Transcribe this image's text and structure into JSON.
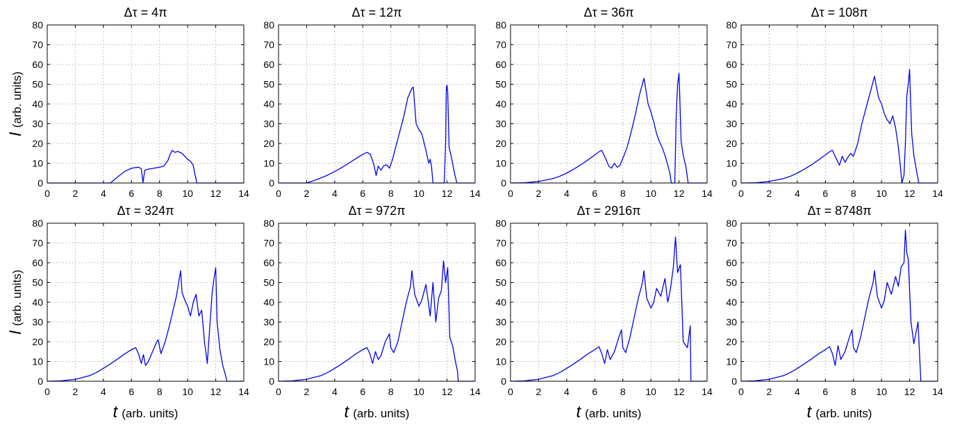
{
  "chart_data": [
    {
      "type": "line",
      "title": "Δτ = 4π",
      "ylabel": {
        "symbol": "I",
        "text": "(arb. units)"
      },
      "xlabel": {
        "symbol": "",
        "text": ""
      },
      "xlim": [
        0,
        14
      ],
      "ylim": [
        0,
        80
      ],
      "xticks": [
        0,
        2,
        4,
        6,
        8,
        10,
        12,
        14
      ],
      "yticks": [
        0,
        10,
        20,
        30,
        40,
        50,
        60,
        70,
        80
      ],
      "grid": true,
      "series": [
        {
          "color": "#0000ee",
          "x": [
            0,
            4.5,
            5.0,
            5.5,
            6.0,
            6.5,
            6.7,
            6.82,
            6.95,
            7.2,
            7.6,
            8.0,
            8.3,
            8.6,
            8.75,
            8.9,
            9.1,
            9.3,
            9.6,
            9.8,
            10.0,
            10.2,
            10.4,
            10.5,
            10.6,
            10.65,
            11.0,
            14.0
          ],
          "y": [
            0,
            0,
            3.0,
            5.8,
            7.5,
            8.0,
            7.2,
            0.2,
            6.5,
            7.0,
            7.5,
            8.0,
            8.5,
            11.5,
            14.5,
            16.5,
            15.5,
            16.0,
            15.0,
            13.5,
            12.0,
            11.0,
            9.0,
            5.0,
            2.0,
            0,
            0,
            0
          ]
        }
      ]
    },
    {
      "type": "line",
      "title": "Δτ = 12π",
      "ylabel": {
        "symbol": "",
        "text": ""
      },
      "xlabel": {
        "symbol": "",
        "text": ""
      },
      "xlim": [
        0,
        14
      ],
      "ylim": [
        0,
        80
      ],
      "xticks": [
        0,
        2,
        4,
        6,
        8,
        10,
        12,
        14
      ],
      "yticks": [
        0,
        10,
        20,
        30,
        40,
        50,
        60,
        70,
        80
      ],
      "grid": true,
      "series": [
        {
          "color": "#0000ee",
          "x": [
            0,
            2.0,
            2.5,
            3.0,
            3.5,
            4.0,
            4.5,
            5.0,
            5.5,
            6.0,
            6.3,
            6.55,
            6.8,
            6.95,
            7.1,
            7.3,
            7.5,
            7.7,
            7.9,
            8.1,
            8.3,
            8.6,
            8.9,
            9.2,
            9.5,
            9.6,
            9.8,
            10.0,
            10.2,
            10.5,
            10.7,
            10.8,
            10.9,
            11.0,
            11.5,
            11.8,
            11.9,
            11.95,
            12.0,
            12.05,
            12.15,
            12.3,
            12.5,
            12.7,
            14.0
          ],
          "y": [
            0,
            0,
            1.2,
            2.5,
            4.0,
            5.8,
            7.8,
            10.0,
            12.3,
            14.5,
            15.5,
            14.5,
            9.0,
            3.8,
            8.5,
            6.5,
            8.8,
            9.2,
            7.5,
            11.5,
            17.0,
            25.0,
            33.0,
            43.0,
            48.0,
            48.5,
            30.0,
            27.0,
            25.0,
            16.5,
            10.0,
            12.0,
            8.0,
            0,
            0,
            0,
            20.0,
            48.0,
            49.5,
            46.0,
            18.0,
            13.5,
            6.0,
            0,
            0
          ]
        }
      ]
    },
    {
      "type": "line",
      "title": "Δτ = 36π",
      "ylabel": {
        "symbol": "",
        "text": ""
      },
      "xlabel": {
        "symbol": "",
        "text": ""
      },
      "xlim": [
        0,
        14
      ],
      "ylim": [
        0,
        80
      ],
      "xticks": [
        0,
        2,
        4,
        6,
        8,
        10,
        12,
        14
      ],
      "yticks": [
        0,
        10,
        20,
        30,
        40,
        50,
        60,
        70,
        80
      ],
      "grid": true,
      "series": [
        {
          "color": "#0000ee",
          "x": [
            0,
            1.0,
            2.0,
            3.0,
            3.5,
            4.0,
            4.5,
            5.0,
            5.5,
            6.0,
            6.3,
            6.5,
            6.8,
            7.0,
            7.2,
            7.4,
            7.6,
            7.8,
            8.0,
            8.3,
            8.6,
            8.9,
            9.2,
            9.5,
            9.6,
            9.8,
            10.0,
            10.2,
            10.4,
            10.6,
            10.8,
            11.0,
            11.2,
            11.35,
            11.45,
            11.6,
            11.7,
            11.8,
            11.9,
            12.0,
            12.05,
            12.15,
            12.3,
            12.5,
            12.65,
            14.0
          ],
          "y": [
            0,
            0.1,
            0.8,
            2.2,
            3.4,
            5.0,
            7.0,
            9.2,
            11.6,
            14.2,
            15.8,
            16.5,
            12.0,
            8.5,
            7.5,
            10.0,
            8.0,
            9.0,
            12.5,
            18.0,
            26.0,
            35.0,
            45.0,
            53.0,
            49.0,
            40.0,
            36.0,
            31.0,
            25.0,
            21.0,
            18.0,
            14.0,
            9.0,
            5.0,
            0,
            0,
            0,
            34.0,
            50.0,
            55.5,
            45.0,
            21.0,
            14.0,
            8.0,
            0,
            0
          ]
        }
      ]
    },
    {
      "type": "line",
      "title": "Δτ = 108π",
      "ylabel": {
        "symbol": "",
        "text": ""
      },
      "xlabel": {
        "symbol": "",
        "text": ""
      },
      "xlim": [
        0,
        14
      ],
      "ylim": [
        0,
        80
      ],
      "xticks": [
        0,
        2,
        4,
        6,
        8,
        10,
        12,
        14
      ],
      "yticks": [
        0,
        10,
        20,
        30,
        40,
        50,
        60,
        70,
        80
      ],
      "grid": true,
      "series": [
        {
          "color": "#0000ee",
          "x": [
            0,
            1.0,
            2.0,
            3.0,
            3.5,
            4.0,
            4.5,
            5.0,
            5.5,
            6.0,
            6.3,
            6.5,
            6.8,
            7.0,
            7.2,
            7.4,
            7.6,
            7.8,
            8.0,
            8.3,
            8.6,
            8.9,
            9.2,
            9.5,
            9.6,
            9.8,
            10.0,
            10.2,
            10.4,
            10.6,
            10.8,
            11.0,
            11.2,
            11.35,
            11.45,
            11.6,
            11.7,
            11.8,
            11.9,
            12.0,
            12.05,
            12.15,
            12.3,
            12.5,
            12.65,
            14.0
          ],
          "y": [
            0,
            0.1,
            0.8,
            2.2,
            3.4,
            5.0,
            7.0,
            9.2,
            11.6,
            14.2,
            15.8,
            16.5,
            12.0,
            9.0,
            13.5,
            10.5,
            13.0,
            15.0,
            13.5,
            20.0,
            30.0,
            38.0,
            46.0,
            54.0,
            50.0,
            43.0,
            40.0,
            35.0,
            32.0,
            30.0,
            34.0,
            28.0,
            18.0,
            8.0,
            0,
            4.0,
            20.0,
            44.0,
            50.0,
            57.5,
            46.0,
            25.0,
            14.0,
            6.0,
            0,
            0
          ]
        }
      ]
    },
    {
      "type": "line",
      "title": "Δτ = 324π",
      "ylabel": {
        "symbol": "I",
        "text": "(arb. units)"
      },
      "xlabel": {
        "symbol": "t",
        "text": "(arb. units)"
      },
      "xlim": [
        0,
        14
      ],
      "ylim": [
        0,
        80
      ],
      "xticks": [
        0,
        2,
        4,
        6,
        8,
        10,
        12,
        14
      ],
      "yticks": [
        0,
        10,
        20,
        30,
        40,
        50,
        60,
        70,
        80
      ],
      "grid": true,
      "series": [
        {
          "color": "#0000ee",
          "x": [
            0,
            1.0,
            2.0,
            3.0,
            3.5,
            4.0,
            4.5,
            5.0,
            5.5,
            6.0,
            6.3,
            6.5,
            6.7,
            6.85,
            7.0,
            7.2,
            7.5,
            7.8,
            7.9,
            8.1,
            8.4,
            8.7,
            9.0,
            9.2,
            9.5,
            9.6,
            9.8,
            10.0,
            10.2,
            10.4,
            10.6,
            10.8,
            11.0,
            11.2,
            11.4,
            11.6,
            11.75,
            11.9,
            12.0,
            12.1,
            12.3,
            12.5,
            12.7,
            12.8,
            14.0
          ],
          "y": [
            0,
            0.2,
            1.0,
            2.8,
            4.4,
            6.5,
            8.8,
            11.2,
            13.8,
            16.0,
            17.0,
            14.0,
            9.0,
            13.5,
            8.0,
            10.0,
            15.0,
            20.0,
            21.0,
            14.0,
            20.0,
            28.0,
            37.0,
            43.0,
            56.0,
            45.0,
            41.0,
            38.0,
            33.0,
            40.0,
            44.0,
            33.0,
            36.0,
            20.0,
            9.0,
            30.0,
            45.0,
            53.0,
            57.5,
            30.0,
            16.0,
            8.0,
            3.0,
            0,
            0
          ]
        }
      ]
    },
    {
      "type": "line",
      "title": "Δτ = 972π",
      "ylabel": {
        "symbol": "",
        "text": ""
      },
      "xlabel": {
        "symbol": "t",
        "text": "(arb. units)"
      },
      "xlim": [
        0,
        14
      ],
      "ylim": [
        0,
        80
      ],
      "xticks": [
        0,
        2,
        4,
        6,
        8,
        10,
        12,
        14
      ],
      "yticks": [
        0,
        10,
        20,
        30,
        40,
        50,
        60,
        70,
        80
      ],
      "grid": true,
      "series": [
        {
          "color": "#0000ee",
          "x": [
            0,
            1.0,
            2.0,
            3.0,
            3.5,
            4.0,
            4.5,
            5.0,
            5.5,
            6.0,
            6.3,
            6.5,
            6.7,
            6.9,
            7.1,
            7.3,
            7.6,
            7.9,
            8.0,
            8.2,
            8.5,
            8.8,
            9.1,
            9.4,
            9.5,
            9.7,
            10.0,
            10.2,
            10.5,
            10.8,
            11.0,
            11.2,
            11.4,
            11.6,
            11.75,
            11.9,
            12.05,
            12.2,
            12.4,
            12.6,
            12.75,
            12.8,
            14.0
          ],
          "y": [
            0,
            0.2,
            1.0,
            2.8,
            4.4,
            6.5,
            8.8,
            11.2,
            13.8,
            16.0,
            17.0,
            14.0,
            9.0,
            15.0,
            11.0,
            13.0,
            20.0,
            24.0,
            17.0,
            14.5,
            20.0,
            30.0,
            40.0,
            48.0,
            56.0,
            44.0,
            38.0,
            41.0,
            49.0,
            33.0,
            50.0,
            30.0,
            42.0,
            46.0,
            61.0,
            50.0,
            57.5,
            22.0,
            18.0,
            10.0,
            5.0,
            0,
            0
          ]
        }
      ]
    },
    {
      "type": "line",
      "title": "Δτ = 2916π",
      "ylabel": {
        "symbol": "",
        "text": ""
      },
      "xlabel": {
        "symbol": "t",
        "text": "(arb. units)"
      },
      "xlim": [
        0,
        14
      ],
      "ylim": [
        0,
        80
      ],
      "xticks": [
        0,
        2,
        4,
        6,
        8,
        10,
        12,
        14
      ],
      "yticks": [
        0,
        10,
        20,
        30,
        40,
        50,
        60,
        70,
        80
      ],
      "grid": true,
      "series": [
        {
          "color": "#0000ee",
          "x": [
            0,
            1.0,
            2.0,
            3.0,
            3.5,
            4.0,
            4.5,
            5.0,
            5.5,
            6.0,
            6.3,
            6.5,
            6.7,
            6.9,
            7.1,
            7.4,
            7.7,
            7.9,
            8.0,
            8.2,
            8.5,
            8.8,
            9.1,
            9.4,
            9.5,
            9.7,
            10.0,
            10.2,
            10.4,
            10.7,
            11.0,
            11.2,
            11.4,
            11.6,
            11.75,
            11.9,
            12.1,
            12.3,
            12.6,
            12.8,
            12.85,
            14.0
          ],
          "y": [
            0,
            0.2,
            1.0,
            2.8,
            4.4,
            6.5,
            8.8,
            11.2,
            13.8,
            16.0,
            17.5,
            14.0,
            9.0,
            16.0,
            11.0,
            15.0,
            22.0,
            26.0,
            17.0,
            14.5,
            22.0,
            32.0,
            42.0,
            50.0,
            56.0,
            42.0,
            37.0,
            40.0,
            47.0,
            43.0,
            52.0,
            40.0,
            47.0,
            58.0,
            73.0,
            55.0,
            59.0,
            20.0,
            17.0,
            28.0,
            0,
            0
          ]
        }
      ]
    },
    {
      "type": "line",
      "title": "Δτ = 8748π",
      "ylabel": {
        "symbol": "",
        "text": ""
      },
      "xlabel": {
        "symbol": "t",
        "text": "(arb. units)"
      },
      "xlim": [
        0,
        14
      ],
      "ylim": [
        0,
        80
      ],
      "xticks": [
        0,
        2,
        4,
        6,
        8,
        10,
        12,
        14
      ],
      "yticks": [
        0,
        10,
        20,
        30,
        40,
        50,
        60,
        70,
        80
      ],
      "grid": true,
      "series": [
        {
          "color": "#0000ee",
          "x": [
            0,
            1.0,
            2.0,
            3.0,
            3.5,
            4.0,
            4.5,
            5.0,
            5.5,
            6.0,
            6.3,
            6.5,
            6.7,
            6.9,
            7.1,
            7.4,
            7.7,
            7.9,
            8.0,
            8.2,
            8.5,
            8.8,
            9.1,
            9.4,
            9.5,
            9.7,
            10.0,
            10.2,
            10.4,
            10.7,
            11.0,
            11.2,
            11.4,
            11.6,
            11.7,
            11.8,
            11.9,
            12.1,
            12.3,
            12.6,
            12.8,
            12.85,
            14.0
          ],
          "y": [
            0,
            0.2,
            1.0,
            2.8,
            4.4,
            6.5,
            8.8,
            11.2,
            13.8,
            16.0,
            17.5,
            14.0,
            8.0,
            18.0,
            11.0,
            15.0,
            22.0,
            26.0,
            17.0,
            14.5,
            22.0,
            32.0,
            42.0,
            50.0,
            56.0,
            43.0,
            37.0,
            41.0,
            50.0,
            44.0,
            53.0,
            48.0,
            58.0,
            60.0,
            76.5,
            65.0,
            62.0,
            30.0,
            19.0,
            30.0,
            0,
            0,
            0
          ]
        }
      ]
    }
  ]
}
